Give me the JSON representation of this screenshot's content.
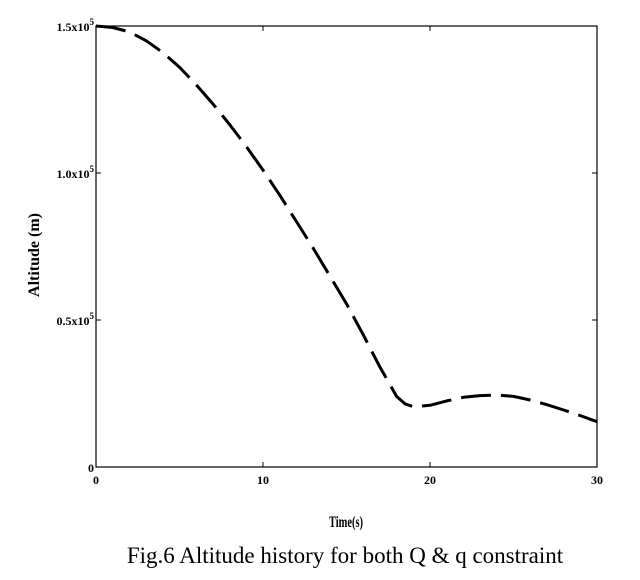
{
  "chart_data": {
    "type": "line",
    "title": "",
    "xlabel": "Time(s)",
    "ylabel": "Altitude (m)",
    "xlim": [
      0,
      30
    ],
    "ylim": [
      0,
      150000
    ],
    "x_ticks": [
      {
        "value": 0,
        "label": "0"
      },
      {
        "value": 10,
        "label": "10"
      },
      {
        "value": 20,
        "label": "20"
      },
      {
        "value": 30,
        "label": "30"
      }
    ],
    "y_ticks": [
      {
        "value": 0,
        "mantissa": "0",
        "exponent": ""
      },
      {
        "value": 50000,
        "mantissa": "0.5x10",
        "exponent": "5"
      },
      {
        "value": 100000,
        "mantissa": "1.0x10",
        "exponent": "5"
      },
      {
        "value": 150000,
        "mantissa": "1.5x10",
        "exponent": "5"
      }
    ],
    "grid": false,
    "series": [
      {
        "line_style": "dashed",
        "x": [
          0,
          1,
          2,
          3,
          4,
          5,
          6,
          7,
          8,
          9,
          10,
          11,
          12,
          13,
          14,
          15,
          16,
          17,
          17.5,
          18,
          18.5,
          19,
          20,
          21,
          22,
          23,
          24,
          25,
          26,
          27,
          28,
          29,
          30
        ],
        "y": [
          150000,
          149500,
          148000,
          145000,
          141000,
          136000,
          130000,
          123500,
          116500,
          109000,
          101000,
          92500,
          83500,
          74500,
          65000,
          55500,
          45000,
          34000,
          29000,
          24000,
          21500,
          20500,
          21000,
          22500,
          23700,
          24300,
          24500,
          24000,
          22800,
          21200,
          19400,
          17500,
          15400
        ]
      }
    ]
  },
  "caption": "Fig.6  Altitude history for both Q & q constraint"
}
